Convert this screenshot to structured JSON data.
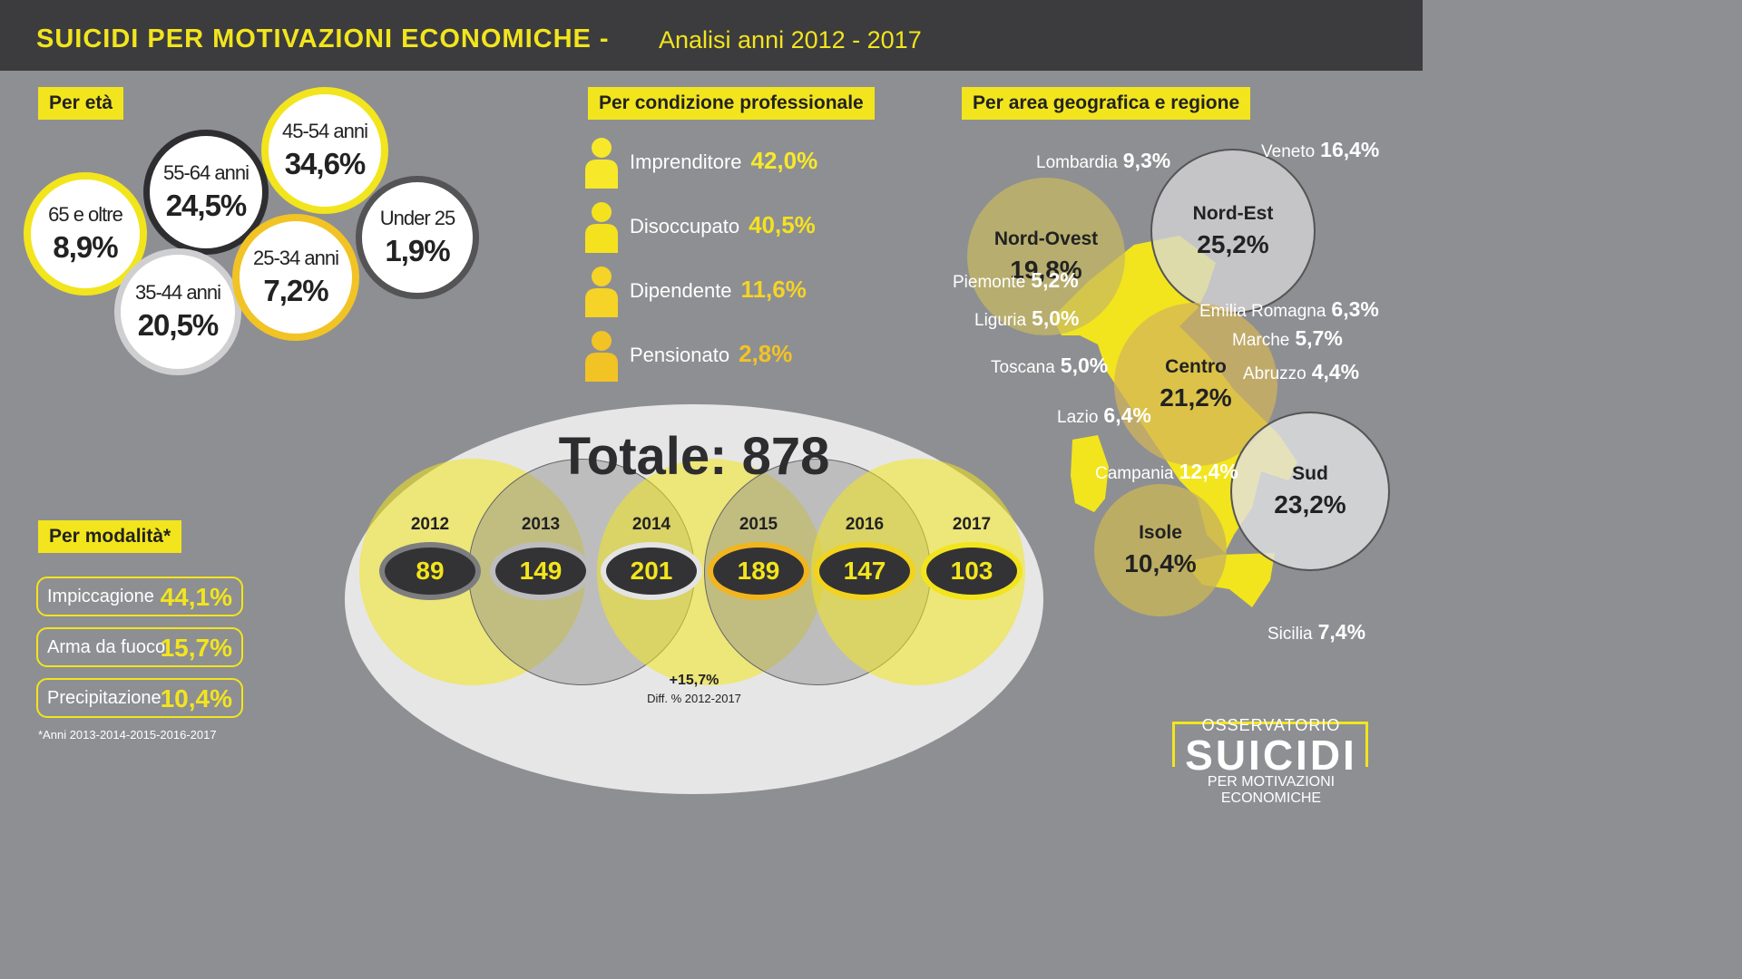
{
  "header": {
    "title": "SUICIDI PER MOTIVAZIONI ECONOMICHE -",
    "subtitle": "Analisi anni 2012 - 2017"
  },
  "eta": {
    "label": "Per età",
    "groups": [
      {
        "age": "65 e oltre",
        "value": "8,9%"
      },
      {
        "age": "55-64 anni",
        "value": "24,5%"
      },
      {
        "age": "45-54 anni",
        "value": "34,6%"
      },
      {
        "age": "35-44 anni",
        "value": "20,5%"
      },
      {
        "age": "25-34 anni",
        "value": "7,2%"
      },
      {
        "age": "Under 25",
        "value": "1,9%"
      }
    ]
  },
  "professione": {
    "label": "Per condizione professionale",
    "items": [
      {
        "name": "Imprenditore",
        "value": "42,0%",
        "color": "#f7e92a"
      },
      {
        "name": "Disoccupato",
        "value": "40,5%",
        "color": "#f5e21f"
      },
      {
        "name": "Dipendente",
        "value": "11,6%",
        "color": "#f5d327"
      },
      {
        "name": "Pensionato",
        "value": "2,8%",
        "color": "#f2c325"
      }
    ]
  },
  "modalita": {
    "label": "Per modalità*",
    "items": [
      {
        "name": "Impiccagione",
        "value": "44,1%"
      },
      {
        "name": "Arma da fuoco",
        "value": "15,7%"
      },
      {
        "name": "Precipitazione",
        "value": "10,4%"
      }
    ],
    "footnote": "*Anni 2013-2014-2015-2016-2017"
  },
  "totale": {
    "label": "Totale: 878",
    "years": [
      {
        "year": "2012",
        "value": "89"
      },
      {
        "year": "2013",
        "value": "149"
      },
      {
        "year": "2014",
        "value": "201"
      },
      {
        "year": "2015",
        "value": "189"
      },
      {
        "year": "2016",
        "value": "147"
      },
      {
        "year": "2017",
        "value": "103"
      }
    ],
    "diff_value": "+15,7%",
    "diff_label": "Diff. % 2012-2017"
  },
  "geo": {
    "label": "Per area geografica e regione",
    "areas": [
      {
        "name": "Nord-Ovest",
        "value": "19,8%"
      },
      {
        "name": "Nord-Est",
        "value": "25,2%"
      },
      {
        "name": "Centro",
        "value": "21,2%"
      },
      {
        "name": "Sud",
        "value": "23,2%"
      },
      {
        "name": "Isole",
        "value": "10,4%"
      }
    ],
    "regions": [
      {
        "name": "Lombardia",
        "value": "9,3%"
      },
      {
        "name": "Veneto",
        "value": "16,4%"
      },
      {
        "name": "Piemonte",
        "value": "5,2%"
      },
      {
        "name": "Liguria",
        "value": "5,0%"
      },
      {
        "name": "Emilia Romagna",
        "value": "6,3%"
      },
      {
        "name": "Marche",
        "value": "5,7%"
      },
      {
        "name": "Toscana",
        "value": "5,0%"
      },
      {
        "name": "Abruzzo",
        "value": "4,4%"
      },
      {
        "name": "Lazio",
        "value": "6,4%"
      },
      {
        "name": "Campania",
        "value": "12,4%"
      },
      {
        "name": "Sicilia",
        "value": "7,4%"
      }
    ]
  },
  "logo": {
    "top": "OSSERVATORIO",
    "main": "SUICIDI",
    "bottom": "PER MOTIVAZIONI ECONOMICHE"
  },
  "colors": {
    "accent": "#f2e51d",
    "background": "#8e8f92",
    "header": "#3c3c3e",
    "dark": "#333335"
  }
}
